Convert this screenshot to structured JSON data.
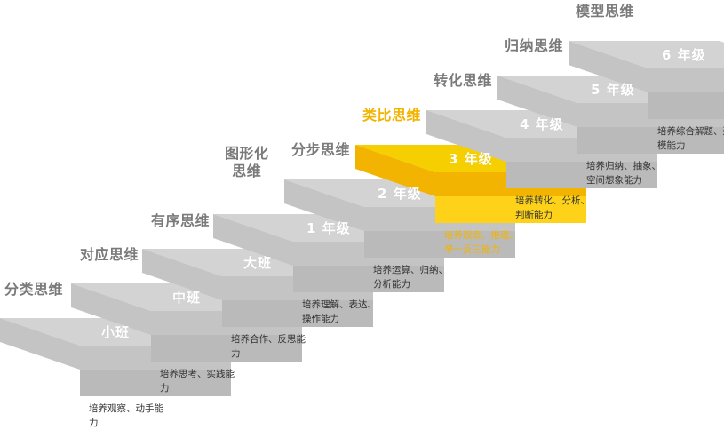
{
  "steps": [
    {
      "grade": "小班",
      "thinking": "分类思维",
      "desc": "培养观察、动手能力",
      "highlight": false
    },
    {
      "grade": "中班",
      "thinking": "对应思维",
      "desc": "培养思考、实践能力",
      "highlight": false
    },
    {
      "grade": "大班",
      "thinking": "有序思维",
      "desc": "培养合作、反思能力",
      "highlight": false
    },
    {
      "grade": "1 年级",
      "thinking": "图形化\n思维",
      "desc": "培养理解、表达、操作能力",
      "highlight": false
    },
    {
      "grade": "2 年级",
      "thinking": "分步思维",
      "desc": "培养运算、归纳、分析能力",
      "highlight": false
    },
    {
      "grade": "3 年级",
      "thinking": "类比思维",
      "desc": "培养观察、推理、举一反三能力",
      "highlight": true
    },
    {
      "grade": "4 年级",
      "thinking": "转化思维",
      "desc": "培养转化、分析、判断能力",
      "highlight": false
    },
    {
      "grade": "5 年级",
      "thinking": "归纳思维",
      "desc": "培养归纳、抽象、空间想象能力",
      "highlight": false
    },
    {
      "grade": "6 年级",
      "thinking": "模型思维",
      "desc": "培养综合解题、建模能力",
      "highlight": false
    }
  ],
  "colors": {
    "top": "#d3d3d3",
    "front": "#c4c4c4",
    "riser": "#bababa",
    "hl_top": "#f6cf00",
    "hl_front": "#f2b400",
    "hl_riser": "#ffd21a",
    "title": "#7a7a7a",
    "title_highlight": "#f2b400",
    "desc": "#333333"
  }
}
